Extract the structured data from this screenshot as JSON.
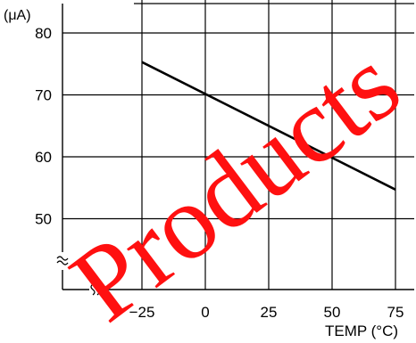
{
  "chart_data": {
    "type": "line",
    "y_unit_label": "(μA)",
    "xlabel": "TEMP (°C)",
    "x_tick_labels": [
      "−25",
      "0",
      "25",
      "50",
      "75"
    ],
    "x_ticks": [
      -25,
      0,
      25,
      50,
      75
    ],
    "y_tick_labels": [
      "80",
      "70",
      "60",
      "50"
    ],
    "y_ticks": [
      80,
      70,
      60,
      50
    ],
    "xlim": [
      -50,
      87
    ],
    "ylim": [
      40,
      82
    ],
    "axis_breaks": "x and y (≈ marks)",
    "grid": true,
    "series": [
      {
        "x": [
          -25,
          75
        ],
        "y": [
          75.3,
          54.7
        ],
        "color": "#000000"
      }
    ]
  },
  "watermark": {
    "text": "Products",
    "color": "#ff1010"
  }
}
